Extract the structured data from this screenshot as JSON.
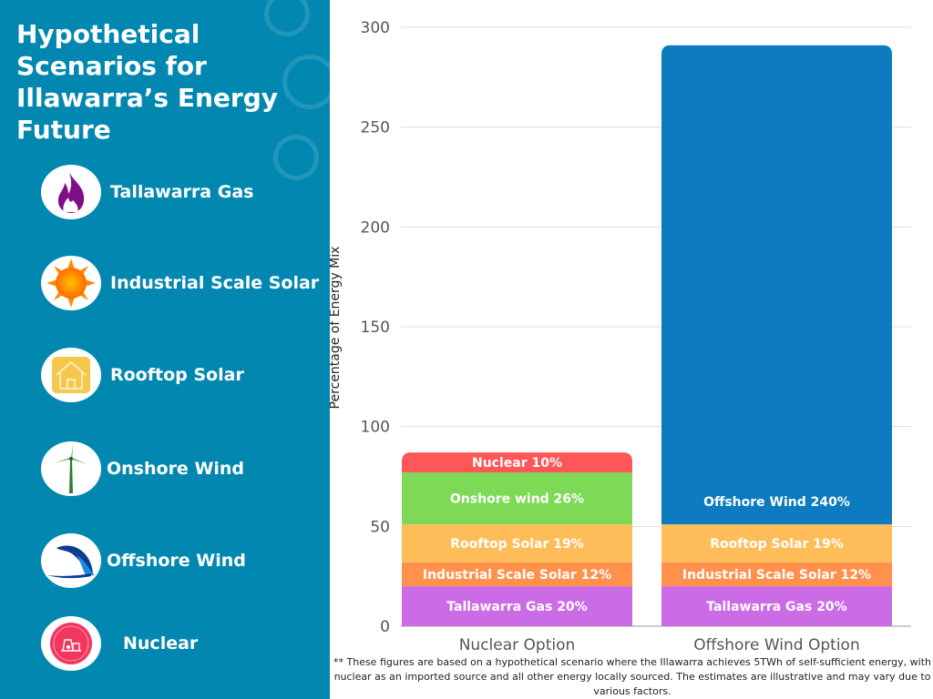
{
  "title": "Hypothetical Scenarios for Illawarra’s Energy Future",
  "legend": [
    {
      "label": "Tallawarra Gas",
      "icon": "flame-icon"
    },
    {
      "label": "Industrial Scale Solar",
      "icon": "sun-icon"
    },
    {
      "label": "Rooftop Solar",
      "icon": "house-icon"
    },
    {
      "label": "Onshore Wind",
      "icon": "wind-turbine-icon"
    },
    {
      "label": "Offshore Wind",
      "icon": "wave-icon"
    },
    {
      "label": "Nuclear",
      "icon": "nuclear-plant-icon"
    }
  ],
  "footnote": "** These figures are based on a hypothetical scenario where the Illawarra achieves 5TWh of self-sufficient energy, with nuclear as an imported source and all other energy locally sourced. The estimates are illustrative and may vary due to various factors.",
  "chart_data": {
    "type": "bar",
    "stacked": true,
    "ylabel": "Percentage of Energy Mix",
    "ylim": [
      0,
      300
    ],
    "yticks": [
      "0",
      "50",
      "100",
      "150",
      "200",
      "250",
      "300"
    ],
    "grid": true,
    "categories": [
      "Nuclear Option",
      "Offshore Wind Option"
    ],
    "stacks": [
      {
        "category": "Nuclear Option",
        "segments": [
          {
            "label": "Tallawarra Gas 20%",
            "value": 20,
            "color": "#cb6ce6"
          },
          {
            "label": "Industrial Scale Solar 12%",
            "value": 12,
            "color": "#ff914d"
          },
          {
            "label": "Rooftop Solar 19%",
            "value": 19,
            "color": "#ffbd59"
          },
          {
            "label": "Onshore wind 26%",
            "value": 26,
            "color": "#7ed957"
          },
          {
            "label": "Nuclear 10%",
            "value": 10,
            "color": "#ff5757"
          }
        ]
      },
      {
        "category": "Offshore Wind Option",
        "segments": [
          {
            "label": "Tallawarra Gas 20%",
            "value": 20,
            "color": "#cb6ce6"
          },
          {
            "label": "Industrial Scale Solar 12%",
            "value": 12,
            "color": "#ff914d"
          },
          {
            "label": "Rooftop Solar 19%",
            "value": 19,
            "color": "#ffbd59"
          },
          {
            "label": "Offshore Wind 240%",
            "value": 240,
            "color": "#0c7bbf"
          }
        ]
      }
    ]
  }
}
